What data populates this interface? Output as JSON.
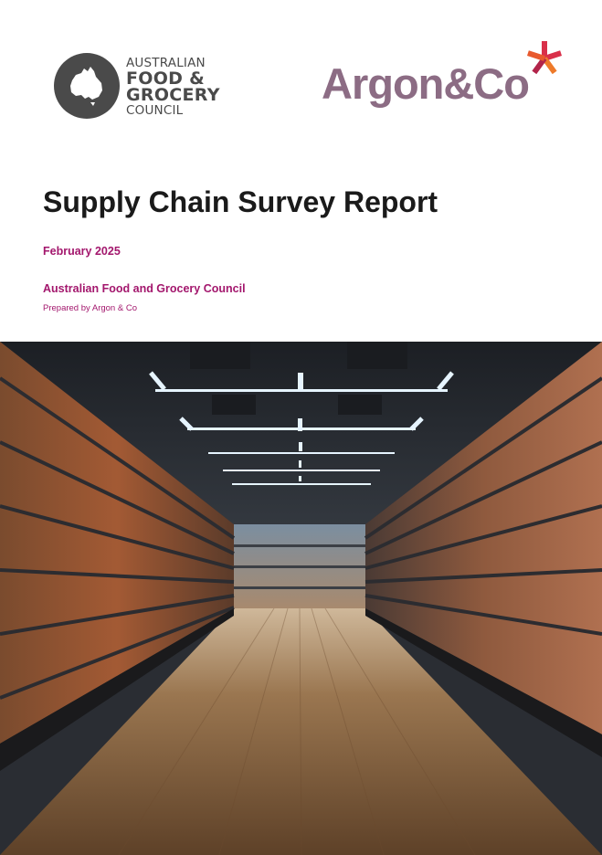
{
  "logos": {
    "afgc": {
      "line1": "AUSTRALIAN",
      "line2": "FOOD &",
      "line3": "GROCERY",
      "line4": "COUNCIL"
    },
    "argon": {
      "text": "Argon&Co"
    }
  },
  "report": {
    "title": "Supply Chain Survey Report",
    "date": "February 2025",
    "organisation": "Australian Food and Grocery Council",
    "prepared_by": "Prepared by Argon & Co"
  },
  "hero_image": {
    "subject": "supermarket-aisle-photo"
  },
  "colors": {
    "accent": "#a3176d",
    "afgc_grey": "#4a4a4a",
    "argon_mauve": "#8c6c84",
    "argon_star_red": "#d9304a",
    "argon_star_orange": "#ee7a2a"
  }
}
